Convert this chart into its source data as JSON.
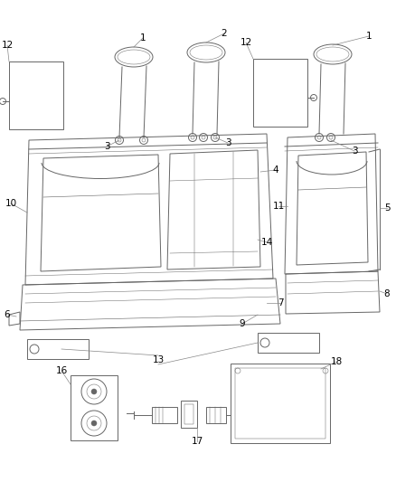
{
  "bg_color": "#ffffff",
  "line_color": "#666666",
  "label_color": "#000000",
  "callout_color": "#888888",
  "fig_width": 4.38,
  "fig_height": 5.33,
  "dpi": 100
}
